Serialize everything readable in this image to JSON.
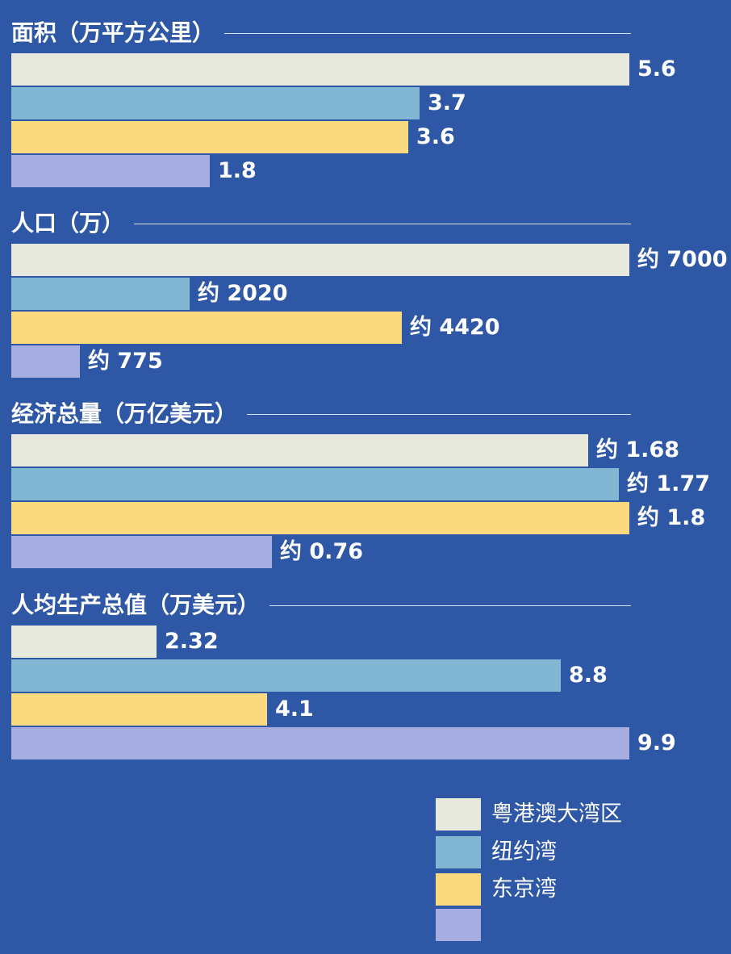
{
  "chart_data": {
    "type": "bar",
    "orientation": "horizontal",
    "legend_position": "bottom-right",
    "grid": false,
    "colors": {
      "background": "#2e57a5",
      "text": "#ffffff",
      "rule": "#d9e3f5"
    },
    "series": [
      {
        "name": "粤港澳大湾区",
        "color": "#e8e9dd"
      },
      {
        "name": "纽约湾",
        "color": "#82b7d3"
      },
      {
        "name": "东京湾",
        "color": "#fbd97f"
      },
      {
        "name": "",
        "color": "#a6ade0"
      }
    ],
    "panels": [
      {
        "title": "面积（万平方公里）",
        "max": 5.6,
        "values": [
          5.6,
          3.7,
          3.6,
          1.8
        ],
        "labels": [
          "5.6",
          "3.7",
          "3.6",
          "1.8"
        ]
      },
      {
        "title": "人口（万）",
        "max": 7000,
        "values": [
          7000,
          2020,
          4420,
          775
        ],
        "labels": [
          "约 7000",
          "约 2020",
          "约 4420",
          "约 775"
        ]
      },
      {
        "title": "经济总量（万亿美元）",
        "max": 1.8,
        "values": [
          1.68,
          1.77,
          1.8,
          0.76
        ],
        "labels": [
          "约 1.68",
          "约 1.77",
          "约 1.8",
          "约 0.76"
        ]
      },
      {
        "title": "人均生产总值（万美元）",
        "max": 9.9,
        "values": [
          2.32,
          8.8,
          4.1,
          9.9
        ],
        "labels": [
          "2.32",
          "8.8",
          "4.1",
          "9.9"
        ]
      }
    ]
  }
}
